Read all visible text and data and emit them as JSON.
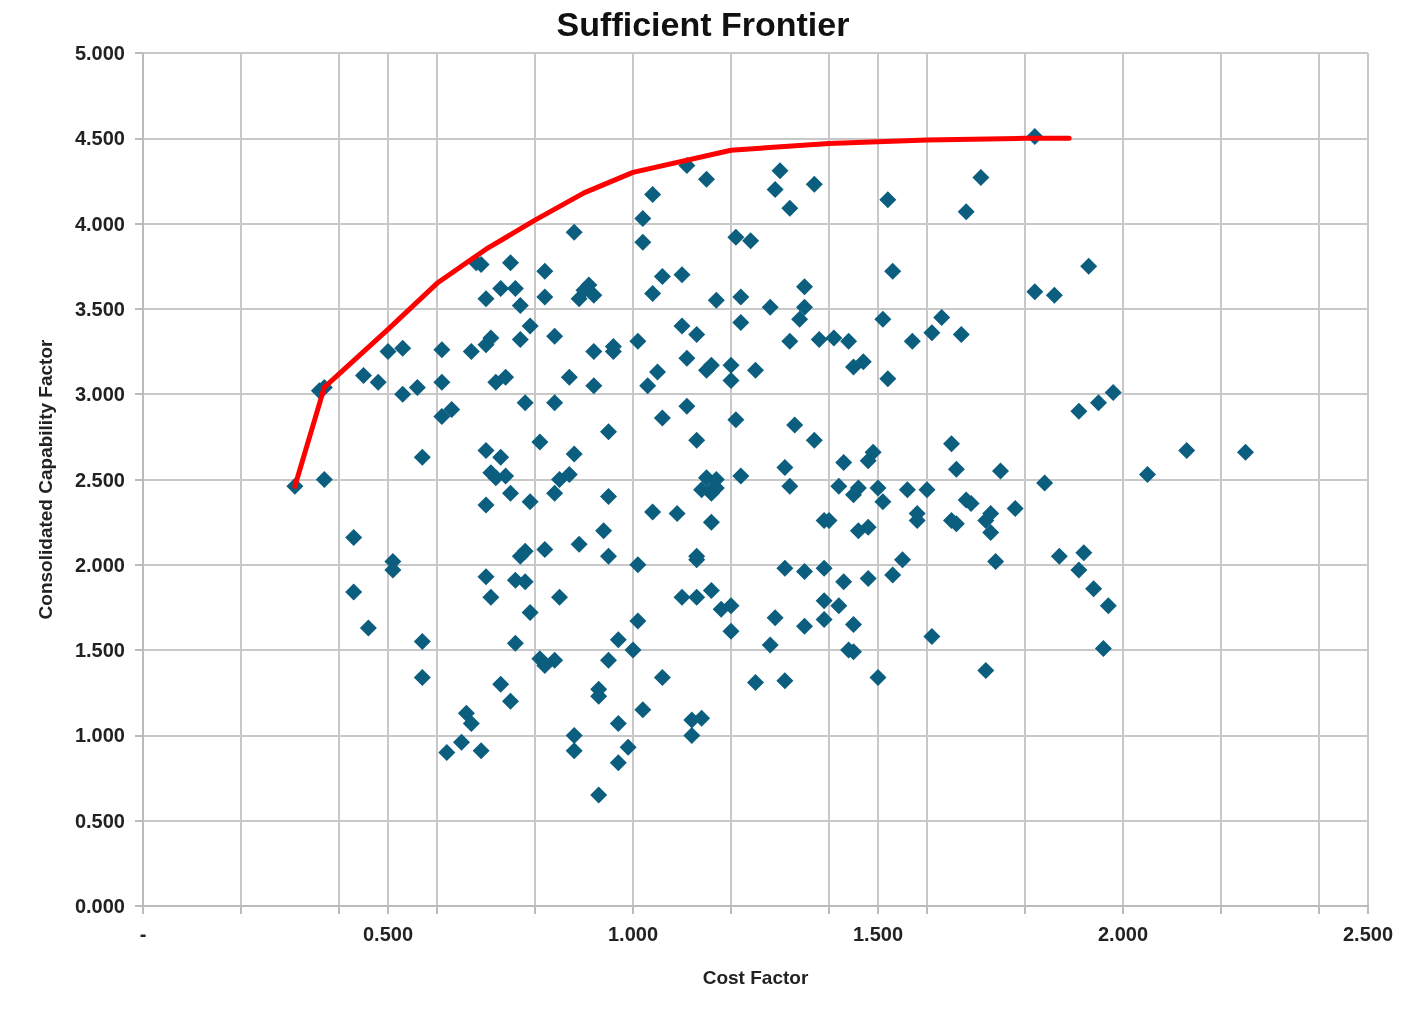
{
  "chart_data": {
    "type": "scatter",
    "title": "Sufficient Frontier",
    "xlabel": "Cost Factor",
    "ylabel": "Consolidated Capability Factor",
    "xlim": [
      0,
      2.5
    ],
    "xticks": [
      {
        "value": 0,
        "label": "-"
      },
      {
        "value": 0.2,
        "label": null
      },
      {
        "value": 0.4,
        "label": null
      },
      {
        "value": 0.5,
        "label": "0.500"
      },
      {
        "value": 0.6,
        "label": null
      },
      {
        "value": 0.8,
        "label": null
      },
      {
        "value": 1.0,
        "label": "1.000"
      },
      {
        "value": 1.2,
        "label": null
      },
      {
        "value": 1.4,
        "label": null
      },
      {
        "value": 1.5,
        "label": "1.500"
      },
      {
        "value": 1.6,
        "label": null
      },
      {
        "value": 1.8,
        "label": null
      },
      {
        "value": 2.0,
        "label": "2.000"
      },
      {
        "value": 2.2,
        "label": null
      },
      {
        "value": 2.4,
        "label": null
      },
      {
        "value": 2.5,
        "label": "2.500"
      }
    ],
    "ylim": [
      0,
      5
    ],
    "yticks": [
      {
        "value": 0,
        "label": "0.000"
      },
      {
        "value": 0.5,
        "label": "0.500"
      },
      {
        "value": 1,
        "label": "1.000"
      },
      {
        "value": 1.5,
        "label": "1.500"
      },
      {
        "value": 2,
        "label": "2.000"
      },
      {
        "value": 2.5,
        "label": "2.500"
      },
      {
        "value": 3,
        "label": "3.000"
      },
      {
        "value": 3.5,
        "label": "3.500"
      },
      {
        "value": 4,
        "label": "4.000"
      },
      {
        "value": 4.5,
        "label": "4.500"
      },
      {
        "value": 5,
        "label": "5.000"
      }
    ],
    "grid": true,
    "series": [
      {
        "marker": "diamond",
        "color": "#0b5e7e",
        "x": [
          0.31,
          0.36,
          0.37,
          0.37,
          0.43,
          0.43,
          0.46,
          0.45,
          0.48,
          0.5,
          0.53,
          0.51,
          0.51,
          0.53,
          0.56,
          0.57,
          0.57,
          0.57,
          0.61,
          0.61,
          0.61,
          0.63,
          0.62,
          0.66,
          0.67,
          0.65,
          0.69,
          0.67,
          0.68,
          0.69,
          0.7,
          0.7,
          0.71,
          0.72,
          0.74,
          0.73,
          0.75,
          0.76,
          0.77,
          0.77,
          0.79,
          0.78,
          0.7,
          0.71,
          0.72,
          0.73,
          0.74,
          0.75,
          0.7,
          0.7,
          0.71,
          0.77,
          0.78,
          0.76,
          0.78,
          0.79,
          0.73,
          0.75,
          0.76,
          0.81,
          0.79,
          0.82,
          0.82,
          0.84,
          0.84,
          0.84,
          0.85,
          0.87,
          0.88,
          0.87,
          0.88,
          0.89,
          0.82,
          0.85,
          0.81,
          0.82,
          0.84,
          0.88,
          0.88,
          0.89,
          0.9,
          0.92,
          0.91,
          0.92,
          0.92,
          0.95,
          0.95,
          0.94,
          0.95,
          0.93,
          0.93,
          0.93,
          0.95,
          0.97,
          0.97,
          0.97,
          0.99,
          0.96,
          0.96,
          1.0,
          1.01,
          1.01,
          1.02,
          1.01,
          1.02,
          1.02,
          1.03,
          1.04,
          1.04,
          1.05,
          1.04,
          1.06,
          1.06,
          1.06,
          1.09,
          1.1,
          1.1,
          1.1,
          1.11,
          1.11,
          1.11,
          1.12,
          1.12,
          1.13,
          1.13,
          1.13,
          1.13,
          1.13,
          1.14,
          1.14,
          1.15,
          1.15,
          1.15,
          1.16,
          1.16,
          1.17,
          1.16,
          1.16,
          1.17,
          1.16,
          1.17,
          1.18,
          1.2,
          1.2,
          1.2,
          1.2,
          1.21,
          1.22,
          1.21,
          1.24,
          1.22,
          1.22,
          1.25,
          1.25,
          1.28,
          1.28,
          1.29,
          1.29,
          1.3,
          1.31,
          1.31,
          1.31,
          1.32,
          1.32,
          1.32,
          1.33,
          1.35,
          1.35,
          1.35,
          1.35,
          1.34,
          1.37,
          1.37,
          1.38,
          1.39,
          1.39,
          1.39,
          1.4,
          1.39,
          1.41,
          1.42,
          1.42,
          1.43,
          1.44,
          1.43,
          1.45,
          1.44,
          1.45,
          1.45,
          1.45,
          1.46,
          1.47,
          1.46,
          1.48,
          1.48,
          1.49,
          1.48,
          1.5,
          1.5,
          1.51,
          1.51,
          1.52,
          1.52,
          1.53,
          1.53,
          1.55,
          1.56,
          1.57,
          1.58,
          1.58,
          1.6,
          1.61,
          1.61,
          1.63,
          1.65,
          1.65,
          1.66,
          1.66,
          1.67,
          1.68,
          1.68,
          1.69,
          1.71,
          1.72,
          1.72,
          1.73,
          1.73,
          1.74,
          1.75,
          1.78,
          1.82,
          1.82,
          1.84,
          1.86,
          1.87,
          1.91,
          1.91,
          1.92,
          1.93,
          1.94,
          1.95,
          1.96,
          1.97,
          1.98,
          2.05,
          2.13,
          2.25
        ],
        "values": [
          2.46,
          3.02,
          3.04,
          2.5,
          2.16,
          1.84,
          1.63,
          3.11,
          3.07,
          3.25,
          3.27,
          2.02,
          1.97,
          3.0,
          3.04,
          2.63,
          1.55,
          1.34,
          3.26,
          3.07,
          2.87,
          2.91,
          0.9,
          1.13,
          1.07,
          0.96,
          0.91,
          3.25,
          3.77,
          3.76,
          3.56,
          3.29,
          3.33,
          3.07,
          3.1,
          3.62,
          3.77,
          3.62,
          3.52,
          3.32,
          3.4,
          2.95,
          2.67,
          2.54,
          2.51,
          2.63,
          2.52,
          2.42,
          2.35,
          1.93,
          1.81,
          2.05,
          2.08,
          1.91,
          1.9,
          1.72,
          1.3,
          1.2,
          1.54,
          2.72,
          2.37,
          3.72,
          3.57,
          3.34,
          2.95,
          2.42,
          2.5,
          2.53,
          3.95,
          3.1,
          2.65,
          2.12,
          2.09,
          1.81,
          1.45,
          1.41,
          1.44,
          1.0,
          0.91,
          3.56,
          3.61,
          3.58,
          3.64,
          3.25,
          3.05,
          2.78,
          2.4,
          2.2,
          2.05,
          1.27,
          1.23,
          0.65,
          1.44,
          1.56,
          1.07,
          0.84,
          0.93,
          3.25,
          3.28,
          1.5,
          2.0,
          1.67,
          1.15,
          3.31,
          3.89,
          4.03,
          3.05,
          4.17,
          3.59,
          3.13,
          2.31,
          2.86,
          3.69,
          1.34,
          2.3,
          1.81,
          3.7,
          3.4,
          4.34,
          2.93,
          3.21,
          1.09,
          1.0,
          3.35,
          2.73,
          2.03,
          2.05,
          1.81,
          1.1,
          2.44,
          3.14,
          4.26,
          2.51,
          2.25,
          1.85,
          2.5,
          2.44,
          3.17,
          2.45,
          2.42,
          3.55,
          1.74,
          1.76,
          1.61,
          3.08,
          3.17,
          2.85,
          2.52,
          3.92,
          3.9,
          3.42,
          3.57,
          3.14,
          1.31,
          3.51,
          1.53,
          1.69,
          4.2,
          4.31,
          1.32,
          1.98,
          2.57,
          2.46,
          3.31,
          4.09,
          2.82,
          3.63,
          1.64,
          1.96,
          3.51,
          3.44,
          4.23,
          2.73,
          3.32,
          2.26,
          1.68,
          1.79,
          2.26,
          1.98,
          3.33,
          1.76,
          2.46,
          2.6,
          3.31,
          1.9,
          2.41,
          1.5,
          1.49,
          1.65,
          3.16,
          2.45,
          3.19,
          2.2,
          2.22,
          2.61,
          2.66,
          1.92,
          2.45,
          1.34,
          3.44,
          2.37,
          4.14,
          3.09,
          3.72,
          1.94,
          2.03,
          2.44,
          3.31,
          2.26,
          2.3,
          2.44,
          3.36,
          1.58,
          3.45,
          2.71,
          2.26,
          2.24,
          2.56,
          3.35,
          4.07,
          2.38,
          2.36,
          4.27,
          2.26,
          1.38,
          2.19,
          2.3,
          2.02,
          2.55,
          2.33,
          3.6,
          4.51,
          2.48,
          3.58,
          2.05,
          2.9,
          1.97,
          2.07,
          3.75,
          1.86,
          2.95,
          1.51,
          1.76,
          3.01,
          2.53,
          2.67,
          2.66
        ]
      },
      {
        "type": "line",
        "marker": "none",
        "line_style": "solid",
        "color": "#ff0000",
        "x": [
          0.31,
          0.37,
          0.5,
          0.6,
          0.7,
          0.8,
          0.9,
          1.0,
          1.2,
          1.4,
          1.6,
          1.8,
          1.89
        ],
        "values": [
          2.46,
          3.04,
          3.38,
          3.65,
          3.85,
          4.02,
          4.18,
          4.3,
          4.43,
          4.47,
          4.49,
          4.5,
          4.5
        ]
      }
    ]
  }
}
